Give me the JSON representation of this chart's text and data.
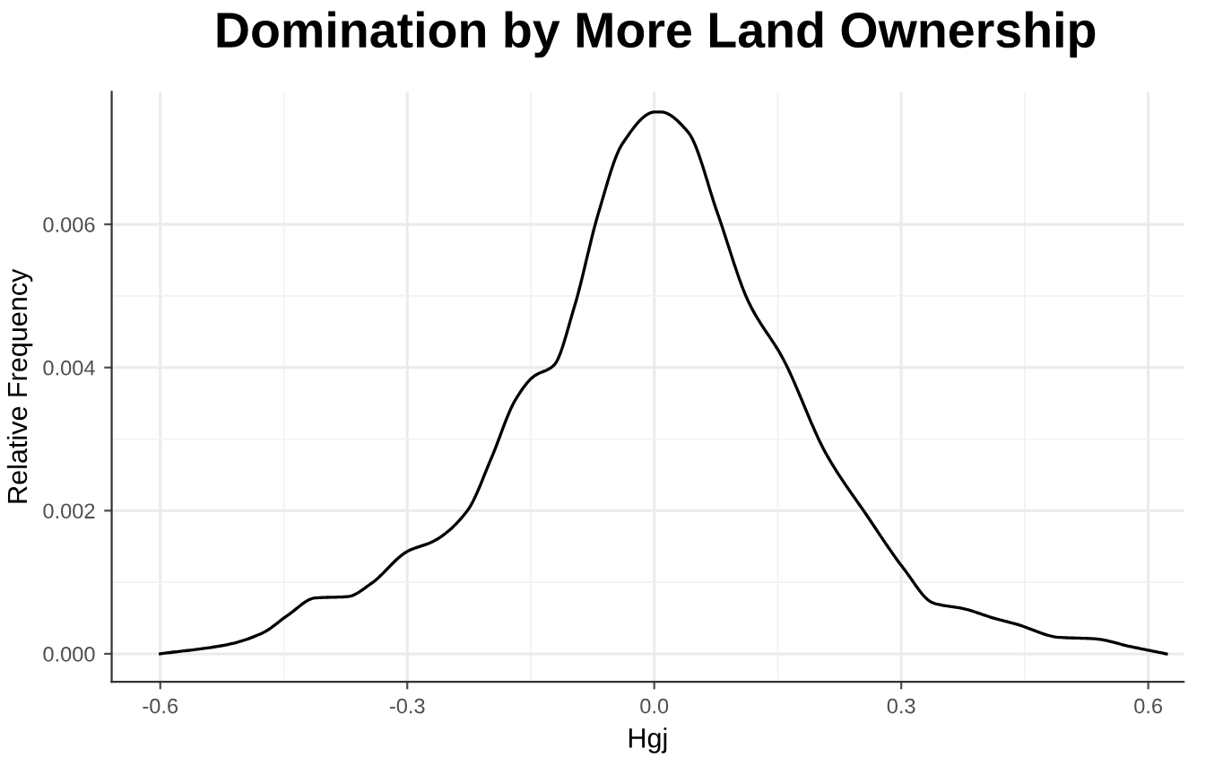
{
  "chart_data": {
    "type": "line",
    "title": "Domination by More Land Ownership",
    "xlabel": "Hgj",
    "ylabel": "Relative Frequency",
    "xlim": [
      -0.659,
      0.643
    ],
    "ylim": [
      -0.00039,
      0.00785
    ],
    "xticks": [
      {
        "value": -0.6,
        "label": "-0.6"
      },
      {
        "value": -0.3,
        "label": "-0.3"
      },
      {
        "value": 0.0,
        "label": "0.0"
      },
      {
        "value": 0.3,
        "label": "0.3"
      },
      {
        "value": 0.6,
        "label": "0.6"
      }
    ],
    "yticks": [
      {
        "value": 0,
        "label": "0.000"
      },
      {
        "value": 0.002,
        "label": "0.002"
      },
      {
        "value": 0.004,
        "label": "0.004"
      },
      {
        "value": 0.006,
        "label": "0.006"
      }
    ],
    "grid": true,
    "marker": "none",
    "line_style": "solid",
    "series": [
      {
        "color": "#000000",
        "x": [
          -0.6,
          -0.518,
          -0.476,
          -0.445,
          -0.412,
          -0.372,
          -0.344,
          -0.3,
          -0.267,
          -0.227,
          -0.198,
          -0.169,
          -0.147,
          -0.122,
          -0.097,
          -0.068,
          -0.039,
          0.001,
          0.008,
          0.041,
          0.077,
          0.114,
          0.157,
          0.208,
          0.259,
          0.303,
          0.339,
          0.376,
          0.412,
          0.441,
          0.492,
          0.535,
          0.579,
          0.622
        ],
        "values": [
          0.0,
          0.00013,
          0.00029,
          0.00054,
          0.00078,
          0.0008,
          0.00098,
          0.00143,
          0.00158,
          0.002,
          0.00273,
          0.00354,
          0.00387,
          0.00403,
          0.00485,
          0.00615,
          0.00712,
          0.00757,
          0.00757,
          0.00729,
          0.00615,
          0.00493,
          0.00411,
          0.00281,
          0.00192,
          0.00119,
          0.00071,
          0.00063,
          0.0005,
          0.00041,
          0.00023,
          0.00021,
          0.0001,
          0.0
        ]
      }
    ]
  }
}
